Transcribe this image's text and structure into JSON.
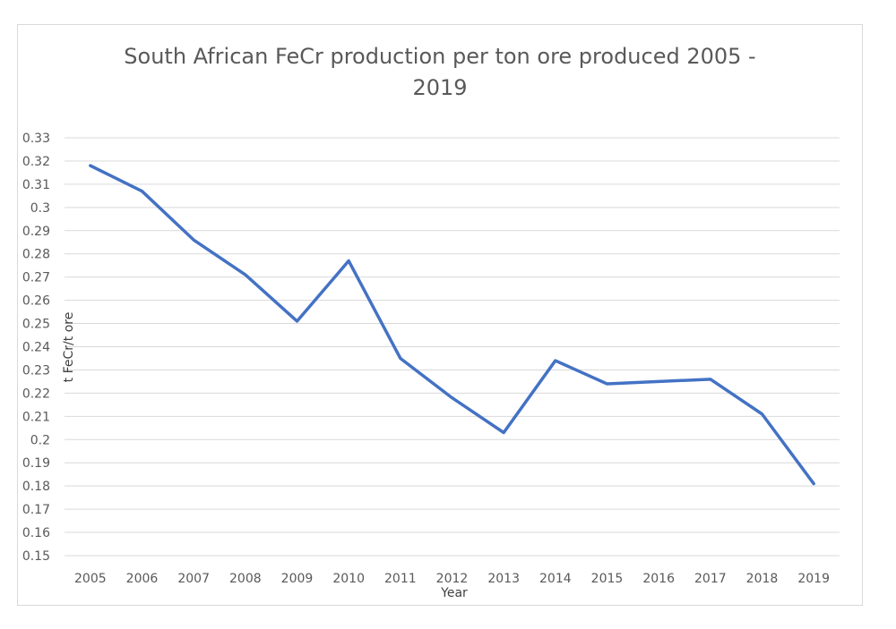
{
  "chart_data": {
    "type": "line",
    "title": "South African FeCr production per ton ore produced 2005 -",
    "title_line2": "2019",
    "xlabel": "Year",
    "ylabel": "t FeCr/t ore",
    "x": [
      "2005",
      "2006",
      "2007",
      "2008",
      "2009",
      "2010",
      "2011",
      "2012",
      "2013",
      "2014",
      "2015",
      "2016",
      "2017",
      "2018",
      "2019"
    ],
    "series": [
      {
        "values": [
          0.318,
          0.307,
          0.286,
          0.271,
          0.251,
          0.277,
          0.235,
          0.218,
          0.203,
          0.234,
          0.224,
          0.225,
          0.226,
          0.211,
          0.181
        ],
        "color": "#4472c4"
      }
    ],
    "ylim": [
      0.15,
      0.33
    ],
    "yticks": [
      "0.15",
      "0.16",
      "0.17",
      "0.18",
      "0.19",
      "0.2",
      "0.21",
      "0.22",
      "0.23",
      "0.24",
      "0.25",
      "0.26",
      "0.27",
      "0.28",
      "0.29",
      "0.3",
      "0.31",
      "0.32",
      "0.33"
    ],
    "grid": true,
    "legend": "none",
    "gridline_color": "#d9d9d9",
    "text_color": "#595959"
  }
}
